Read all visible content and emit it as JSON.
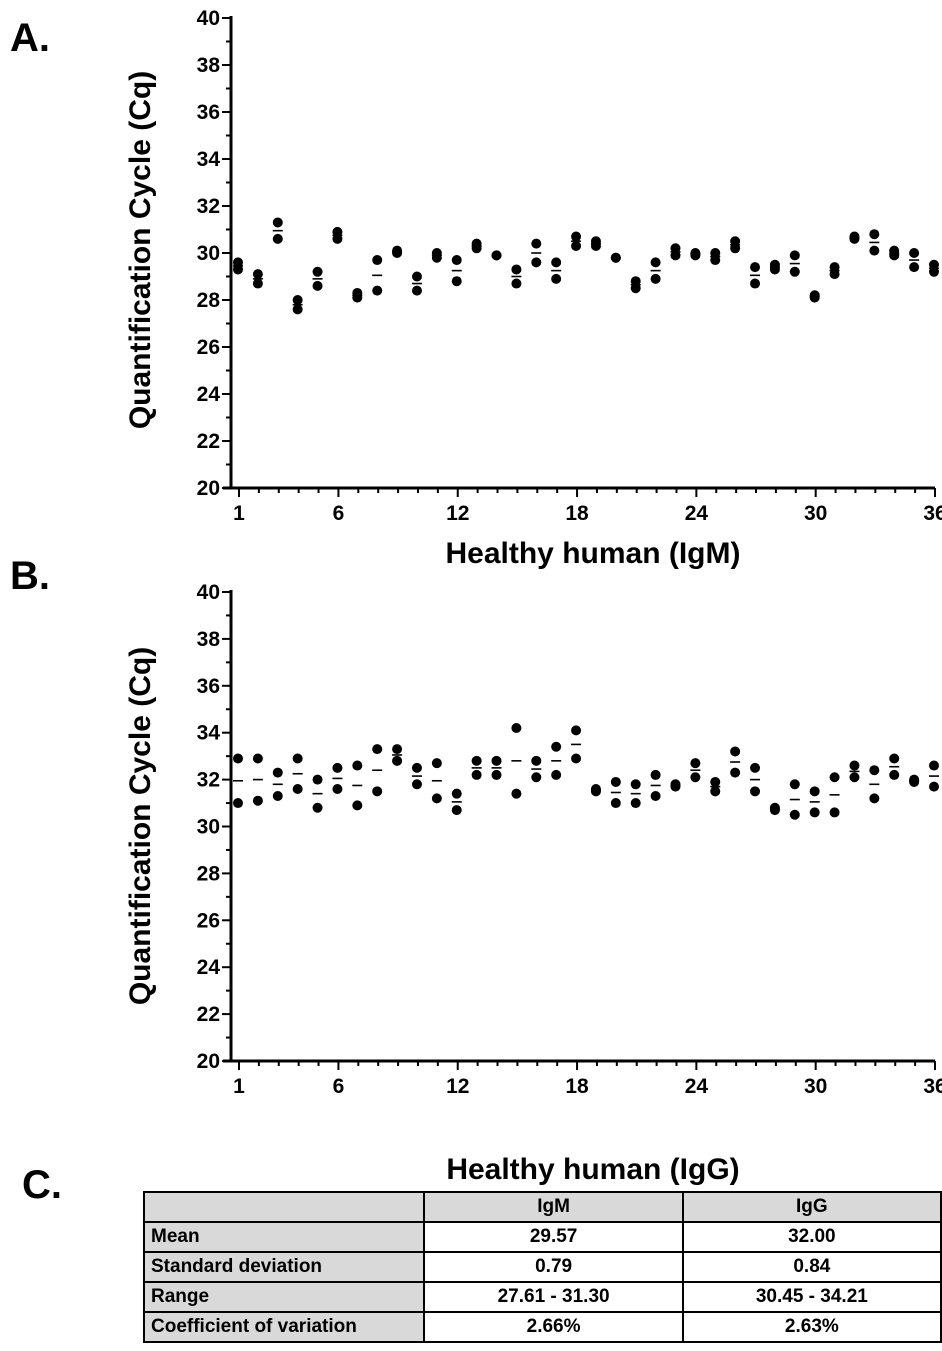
{
  "panels": [
    {
      "letter": "A.",
      "chart_data": {
        "type": "scatter",
        "xlabel": "Healthy human (IgM)",
        "ylabel": "Quantification Cycle (Cq)",
        "ylim": [
          20,
          40
        ],
        "yticks": [
          20,
          22,
          24,
          26,
          28,
          30,
          32,
          34,
          36,
          38,
          40
        ],
        "xlim": [
          1,
          36
        ],
        "xticks": [
          1,
          6,
          12,
          18,
          24,
          30,
          36
        ],
        "series": [
          {
            "points": [
              [
                1,
                29.3
              ],
              [
                1,
                29.6
              ],
              [
                2,
                28.7
              ],
              [
                2,
                29.1
              ],
              [
                3,
                31.3
              ],
              [
                3,
                30.6
              ],
              [
                4,
                27.6
              ],
              [
                4,
                28.0
              ],
              [
                5,
                28.6
              ],
              [
                5,
                29.2
              ],
              [
                6,
                30.6
              ],
              [
                6,
                30.9
              ],
              [
                7,
                28.1
              ],
              [
                7,
                28.3
              ],
              [
                8,
                28.4
              ],
              [
                8,
                29.7
              ],
              [
                9,
                30.0
              ],
              [
                9,
                30.1
              ],
              [
                10,
                28.4
              ],
              [
                10,
                29.0
              ],
              [
                11,
                29.8
              ],
              [
                11,
                30.0
              ],
              [
                12,
                28.8
              ],
              [
                12,
                29.7
              ],
              [
                13,
                30.2
              ],
              [
                13,
                30.4
              ],
              [
                14,
                29.9
              ],
              [
                14,
                29.9
              ],
              [
                15,
                28.7
              ],
              [
                15,
                29.3
              ],
              [
                16,
                29.6
              ],
              [
                16,
                30.4
              ],
              [
                17,
                28.9
              ],
              [
                17,
                29.6
              ],
              [
                18,
                30.3
              ],
              [
                18,
                30.7
              ],
              [
                19,
                30.3
              ],
              [
                19,
                30.5
              ],
              [
                20,
                29.8
              ],
              [
                20,
                29.8
              ],
              [
                21,
                28.5
              ],
              [
                21,
                28.8
              ],
              [
                22,
                28.9
              ],
              [
                22,
                29.6
              ],
              [
                23,
                29.9
              ],
              [
                23,
                30.2
              ],
              [
                24,
                29.9
              ],
              [
                24,
                30.0
              ],
              [
                25,
                29.7
              ],
              [
                25,
                30.0
              ],
              [
                26,
                30.2
              ],
              [
                26,
                30.5
              ],
              [
                27,
                28.7
              ],
              [
                27,
                29.4
              ],
              [
                28,
                29.3
              ],
              [
                28,
                29.5
              ],
              [
                29,
                29.2
              ],
              [
                29,
                29.9
              ],
              [
                30,
                28.1
              ],
              [
                30,
                28.2
              ],
              [
                31,
                29.1
              ],
              [
                31,
                29.4
              ],
              [
                32,
                30.6
              ],
              [
                32,
                30.7
              ],
              [
                33,
                30.1
              ],
              [
                33,
                30.8
              ],
              [
                34,
                29.9
              ],
              [
                34,
                30.1
              ],
              [
                35,
                29.4
              ],
              [
                35,
                30.0
              ],
              [
                36,
                29.2
              ],
              [
                36,
                29.5
              ]
            ]
          }
        ]
      }
    },
    {
      "letter": "B.",
      "chart_data": {
        "type": "scatter",
        "xlabel": "Healthy human (IgG)",
        "ylabel": "Quantification Cycle (Cq)",
        "ylim": [
          20,
          40
        ],
        "yticks": [
          20,
          22,
          24,
          26,
          28,
          30,
          32,
          34,
          36,
          38,
          40
        ],
        "xlim": [
          1,
          36
        ],
        "xticks": [
          1,
          6,
          12,
          18,
          24,
          30,
          36
        ],
        "series": [
          {
            "points": [
              [
                1,
                31.0
              ],
              [
                1,
                32.9
              ],
              [
                2,
                31.1
              ],
              [
                2,
                32.9
              ],
              [
                3,
                31.3
              ],
              [
                3,
                32.3
              ],
              [
                4,
                31.6
              ],
              [
                4,
                32.9
              ],
              [
                5,
                30.8
              ],
              [
                5,
                32.0
              ],
              [
                6,
                31.6
              ],
              [
                6,
                32.5
              ],
              [
                7,
                30.9
              ],
              [
                7,
                32.6
              ],
              [
                8,
                31.5
              ],
              [
                8,
                33.3
              ],
              [
                9,
                32.8
              ],
              [
                9,
                33.3
              ],
              [
                10,
                31.8
              ],
              [
                10,
                32.5
              ],
              [
                11,
                31.2
              ],
              [
                11,
                32.7
              ],
              [
                12,
                30.7
              ],
              [
                12,
                31.4
              ],
              [
                13,
                32.2
              ],
              [
                13,
                32.8
              ],
              [
                14,
                32.2
              ],
              [
                14,
                32.8
              ],
              [
                15,
                31.4
              ],
              [
                15,
                34.2
              ],
              [
                16,
                32.1
              ],
              [
                16,
                32.8
              ],
              [
                17,
                32.2
              ],
              [
                17,
                33.4
              ],
              [
                18,
                32.9
              ],
              [
                18,
                34.1
              ],
              [
                19,
                31.5
              ],
              [
                19,
                31.6
              ],
              [
                20,
                31.0
              ],
              [
                20,
                31.9
              ],
              [
                21,
                31.0
              ],
              [
                21,
                31.8
              ],
              [
                22,
                31.3
              ],
              [
                22,
                32.2
              ],
              [
                23,
                31.7
              ],
              [
                23,
                31.8
              ],
              [
                24,
                32.1
              ],
              [
                24,
                32.7
              ],
              [
                25,
                31.5
              ],
              [
                25,
                31.9
              ],
              [
                26,
                32.3
              ],
              [
                26,
                33.2
              ],
              [
                27,
                31.5
              ],
              [
                27,
                32.5
              ],
              [
                28,
                30.7
              ],
              [
                28,
                30.8
              ],
              [
                29,
                30.5
              ],
              [
                29,
                31.8
              ],
              [
                30,
                30.6
              ],
              [
                30,
                31.5
              ],
              [
                31,
                30.6
              ],
              [
                31,
                32.1
              ],
              [
                32,
                32.1
              ],
              [
                32,
                32.6
              ],
              [
                33,
                31.2
              ],
              [
                33,
                32.4
              ],
              [
                34,
                32.2
              ],
              [
                34,
                32.9
              ],
              [
                35,
                31.9
              ],
              [
                35,
                32.0
              ],
              [
                36,
                31.7
              ],
              [
                36,
                32.6
              ]
            ]
          }
        ]
      }
    }
  ],
  "table": {
    "letter": "C.",
    "chart_data": {
      "type": "table",
      "columns": [
        "",
        "IgM",
        "IgG"
      ],
      "rows": [
        [
          "Mean",
          "29.57",
          "32.00"
        ],
        [
          "Standard deviation",
          "0.79",
          "0.84"
        ],
        [
          "Range",
          "27.61 - 31.30",
          "30.45 - 34.21"
        ],
        [
          "Coefficient of variation",
          "2.66%",
          "2.63%"
        ]
      ]
    }
  }
}
